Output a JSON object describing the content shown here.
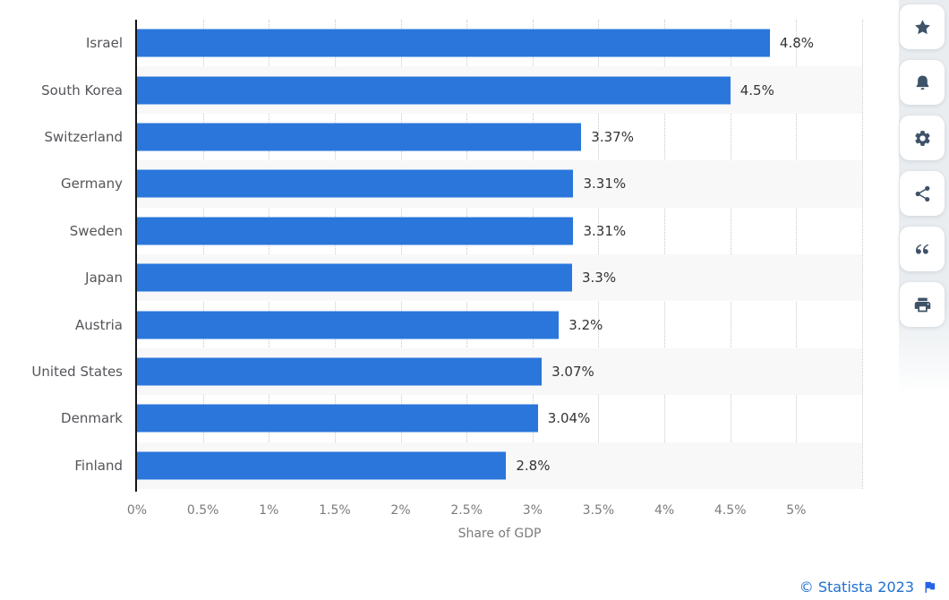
{
  "chart_data": {
    "type": "bar",
    "orientation": "horizontal",
    "title": "",
    "categories": [
      "Israel",
      "South Korea",
      "Switzerland",
      "Germany",
      "Sweden",
      "Japan",
      "Austria",
      "United States",
      "Denmark",
      "Finland"
    ],
    "values": [
      4.8,
      4.5,
      3.37,
      3.31,
      3.31,
      3.3,
      3.2,
      3.07,
      3.04,
      2.8
    ],
    "value_labels": [
      "4.8%",
      "4.5%",
      "3.37%",
      "3.31%",
      "3.31%",
      "3.3%",
      "3.2%",
      "3.07%",
      "3.04%",
      "2.8%"
    ],
    "xlabel": "Share of GDP",
    "ylabel": "",
    "xlim": [
      0,
      5.5
    ],
    "x_ticks": [
      {
        "value": 0,
        "label": "0%"
      },
      {
        "value": 0.5,
        "label": "0.5%"
      },
      {
        "value": 1,
        "label": "1%"
      },
      {
        "value": 1.5,
        "label": "1.5%"
      },
      {
        "value": 2,
        "label": "2%"
      },
      {
        "value": 2.5,
        "label": "2.5%"
      },
      {
        "value": 3,
        "label": "3%"
      },
      {
        "value": 3.5,
        "label": "3.5%"
      },
      {
        "value": 4,
        "label": "4%"
      },
      {
        "value": 4.5,
        "label": "4.5%"
      },
      {
        "value": 5,
        "label": "5%"
      }
    ],
    "gridline_values": [
      0.5,
      1,
      1.5,
      2,
      2.5,
      3,
      3.5,
      4,
      4.5,
      5,
      5.5
    ],
    "grid": "vertical-dotted",
    "legend": "none",
    "bar_color": "#2a76db",
    "alt_row_color": "#f8f8f9"
  },
  "sidebar": {
    "buttons": [
      {
        "name": "favorite",
        "icon": "star-icon"
      },
      {
        "name": "alerts",
        "icon": "bell-icon"
      },
      {
        "name": "settings",
        "icon": "gear-icon"
      },
      {
        "name": "share",
        "icon": "share-icon"
      },
      {
        "name": "cite",
        "icon": "quote-icon"
      },
      {
        "name": "print",
        "icon": "print-icon"
      }
    ],
    "icon_color": "#3e5268"
  },
  "footer": {
    "copyright_label": "© Statista 2023",
    "flag_icon": "flag-icon",
    "link_color": "#2170cf"
  }
}
